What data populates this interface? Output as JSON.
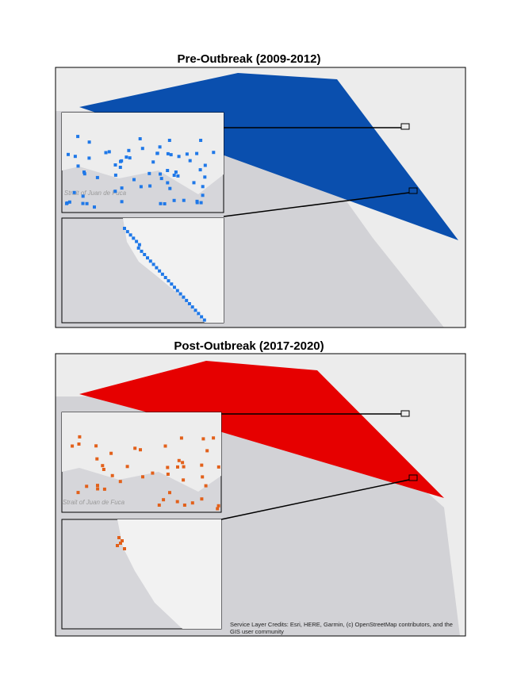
{
  "panels": [
    {
      "title": "Pre-Outbreak (2009-2012)",
      "inset_label": "Strait of Juan de Fuca"
    },
    {
      "title": "Post-Outbreak (2017-2020)",
      "inset_label": "Strait of Juan de Fuca"
    }
  ],
  "credits": [
    "Service Layer Credits: Esri, HERE, Garmin, (c) OpenStreetMap contributors, and the",
    "GIS user community"
  ]
}
